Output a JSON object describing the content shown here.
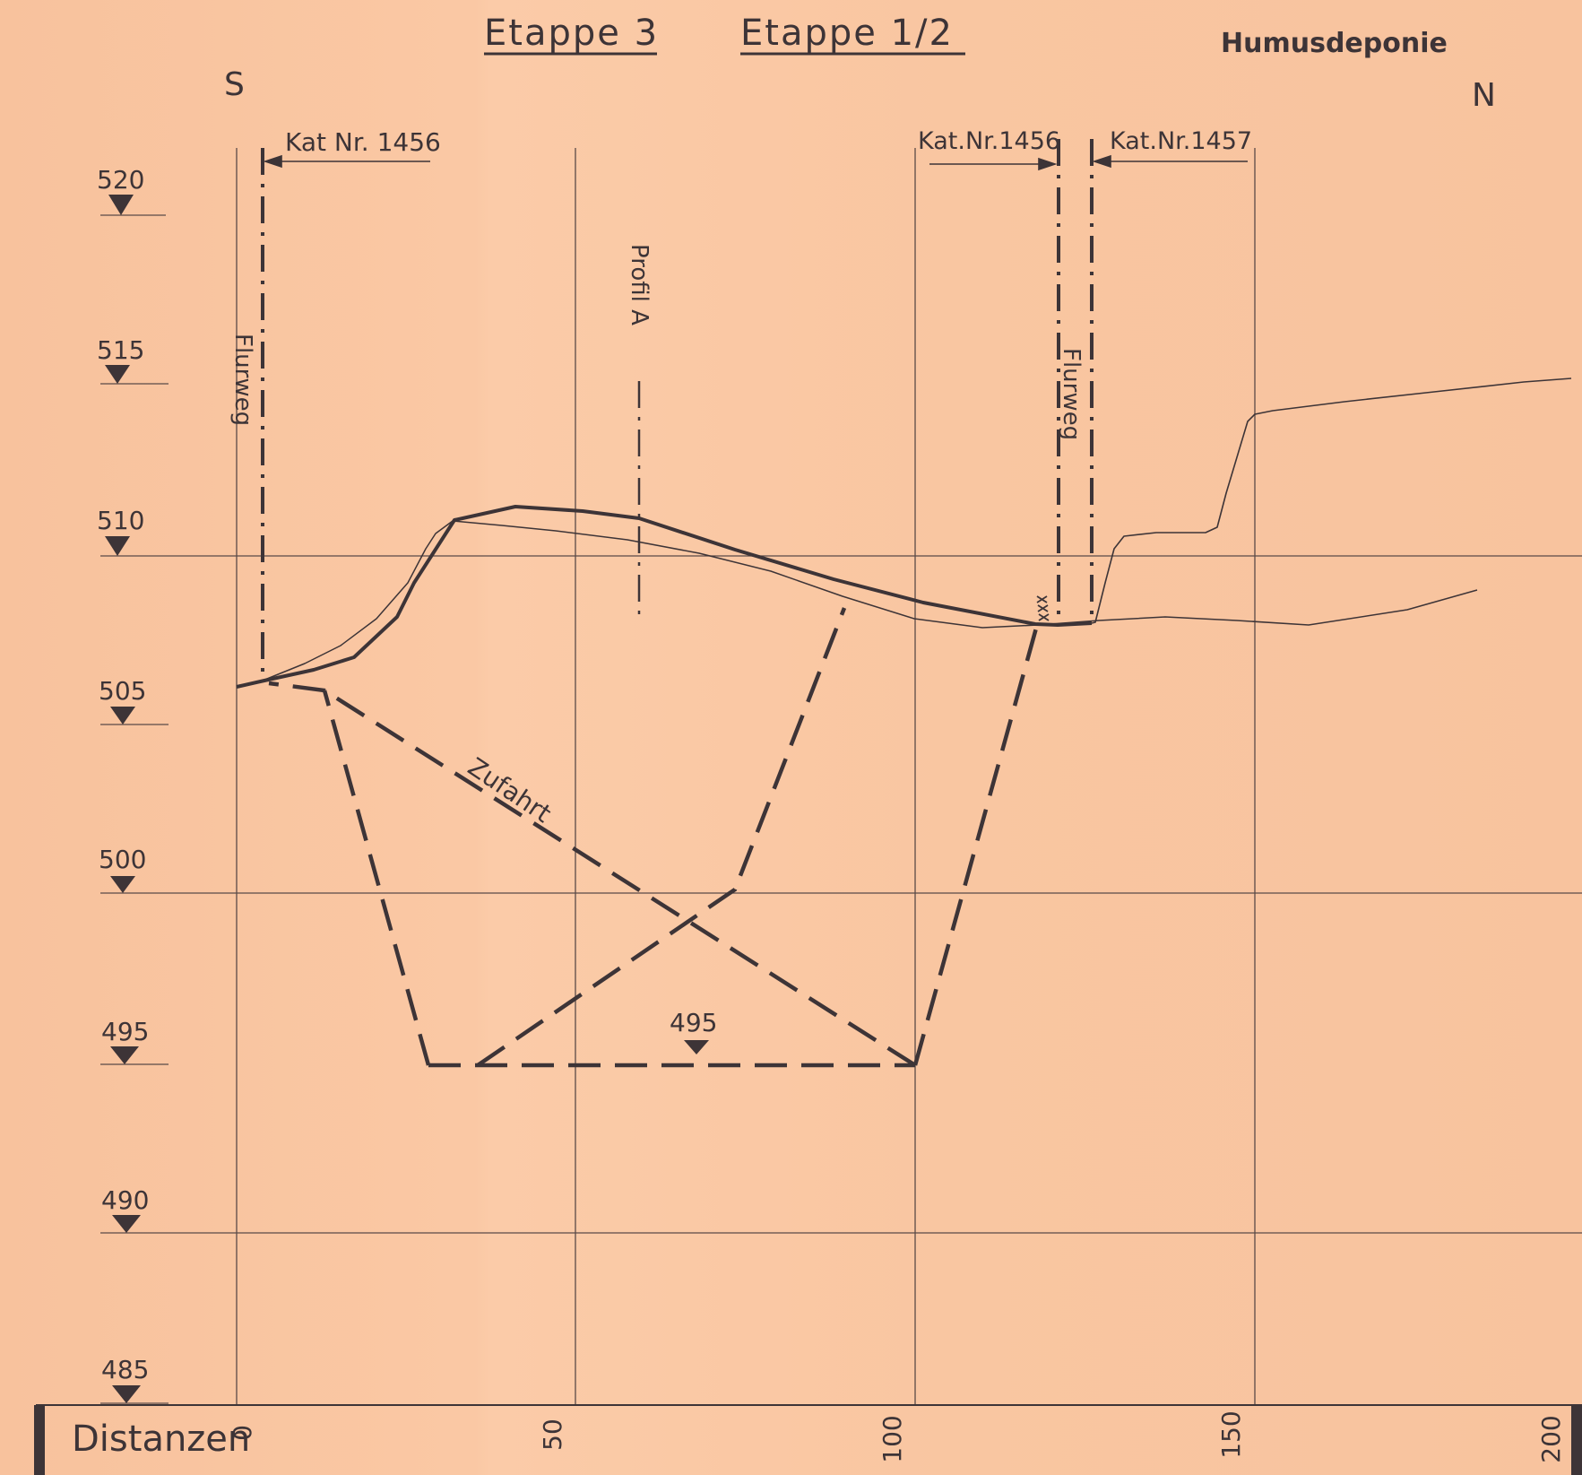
{
  "header": {
    "stage_a": "Etappe 3",
    "stage_b": "Etappe 1/2",
    "deposit": "Humusdeponie"
  },
  "compass": {
    "south": "S",
    "north": "N"
  },
  "parcels": {
    "left": "Kat Nr. 1456",
    "mid": "Kat.Nr.1456",
    "right": "Kat.Nr.1457"
  },
  "labels": {
    "path_left": "Flurweg",
    "path_right": "Flurweg",
    "profile": "Profil A",
    "access": "Zufahrt",
    "floor_level": "495"
  },
  "elevation_axis": {
    "ticks": [
      "520",
      "515",
      "510",
      "505",
      "500",
      "495",
      "490",
      "485"
    ]
  },
  "distance_axis": {
    "title": "Distanzen",
    "ticks": [
      "0",
      "50",
      "100",
      "150",
      "200"
    ]
  },
  "colors": {
    "paper": "#f9c5a0",
    "ink": "#3d3437",
    "grid": "#5a4a48"
  }
}
